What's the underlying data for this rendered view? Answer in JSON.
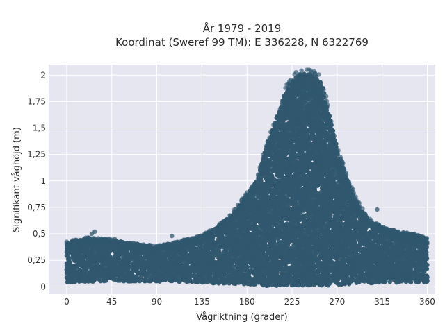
{
  "chart_data": {
    "type": "scatter",
    "title_line1": "År 1979 - 2019",
    "title_line2": "Koordinat (Sweref 99 TM): E 336228, N 6322769",
    "xlabel": "Vågriktning (grader)",
    "ylabel": "Signifikant våghöjd (m)",
    "xlim": [
      -18,
      368
    ],
    "ylim": [
      -0.07,
      2.1
    ],
    "grid": true,
    "x_ticks": [
      0,
      45,
      90,
      135,
      180,
      225,
      270,
      315,
      360
    ],
    "x_tick_labels": [
      "0",
      "45",
      "90",
      "135",
      "180",
      "225",
      "270",
      "315",
      "360"
    ],
    "y_ticks": [
      0,
      0.25,
      0.5,
      0.75,
      1,
      1.25,
      1.5,
      1.75,
      2
    ],
    "y_tick_labels": [
      "0",
      "0,25",
      "0,5",
      "0,75",
      "1",
      "1,25",
      "1,5",
      "1,75",
      "2"
    ],
    "envelope": {
      "description_units": "upper bound of significant wave height (m) by wave direction (degrees)",
      "direction": [
        0,
        20,
        45,
        70,
        90,
        110,
        135,
        150,
        165,
        180,
        190,
        200,
        210,
        220,
        230,
        240,
        250,
        255,
        260,
        265,
        270,
        280,
        290,
        300,
        315,
        330,
        345,
        360
      ],
      "max_height": [
        0.42,
        0.46,
        0.44,
        0.4,
        0.38,
        0.42,
        0.48,
        0.56,
        0.68,
        0.87,
        1.0,
        1.34,
        1.6,
        1.88,
        2.0,
        2.02,
        1.99,
        1.9,
        1.72,
        1.5,
        1.3,
        1.02,
        0.8,
        0.65,
        0.56,
        0.52,
        0.5,
        0.45
      ],
      "min_height": [
        0.04,
        0.05,
        0.05,
        0.05,
        0.05,
        0.05,
        0.04,
        0.03,
        0.03,
        0.02,
        0.02,
        0.01,
        0.01,
        0.01,
        0.01,
        0.01,
        0.01,
        0.01,
        0.01,
        0.02,
        0.02,
        0.02,
        0.03,
        0.03,
        0.04,
        0.04,
        0.04,
        0.04
      ]
    },
    "outliers": [
      {
        "x": 5,
        "y": 0.41
      },
      {
        "x": 25,
        "y": 0.5
      },
      {
        "x": 28,
        "y": 0.52
      },
      {
        "x": 48,
        "y": 0.45
      },
      {
        "x": 54,
        "y": 0.36
      },
      {
        "x": 105,
        "y": 0.48
      },
      {
        "x": 128,
        "y": 0.44
      },
      {
        "x": 310,
        "y": 0.73
      },
      {
        "x": 337,
        "y": 0.5
      },
      {
        "x": 346,
        "y": 0.47
      },
      {
        "x": 355,
        "y": 0.46
      }
    ],
    "marker_color": "#30576e",
    "background_color": "#e5e6f0",
    "grid_color": "#ffffff"
  }
}
